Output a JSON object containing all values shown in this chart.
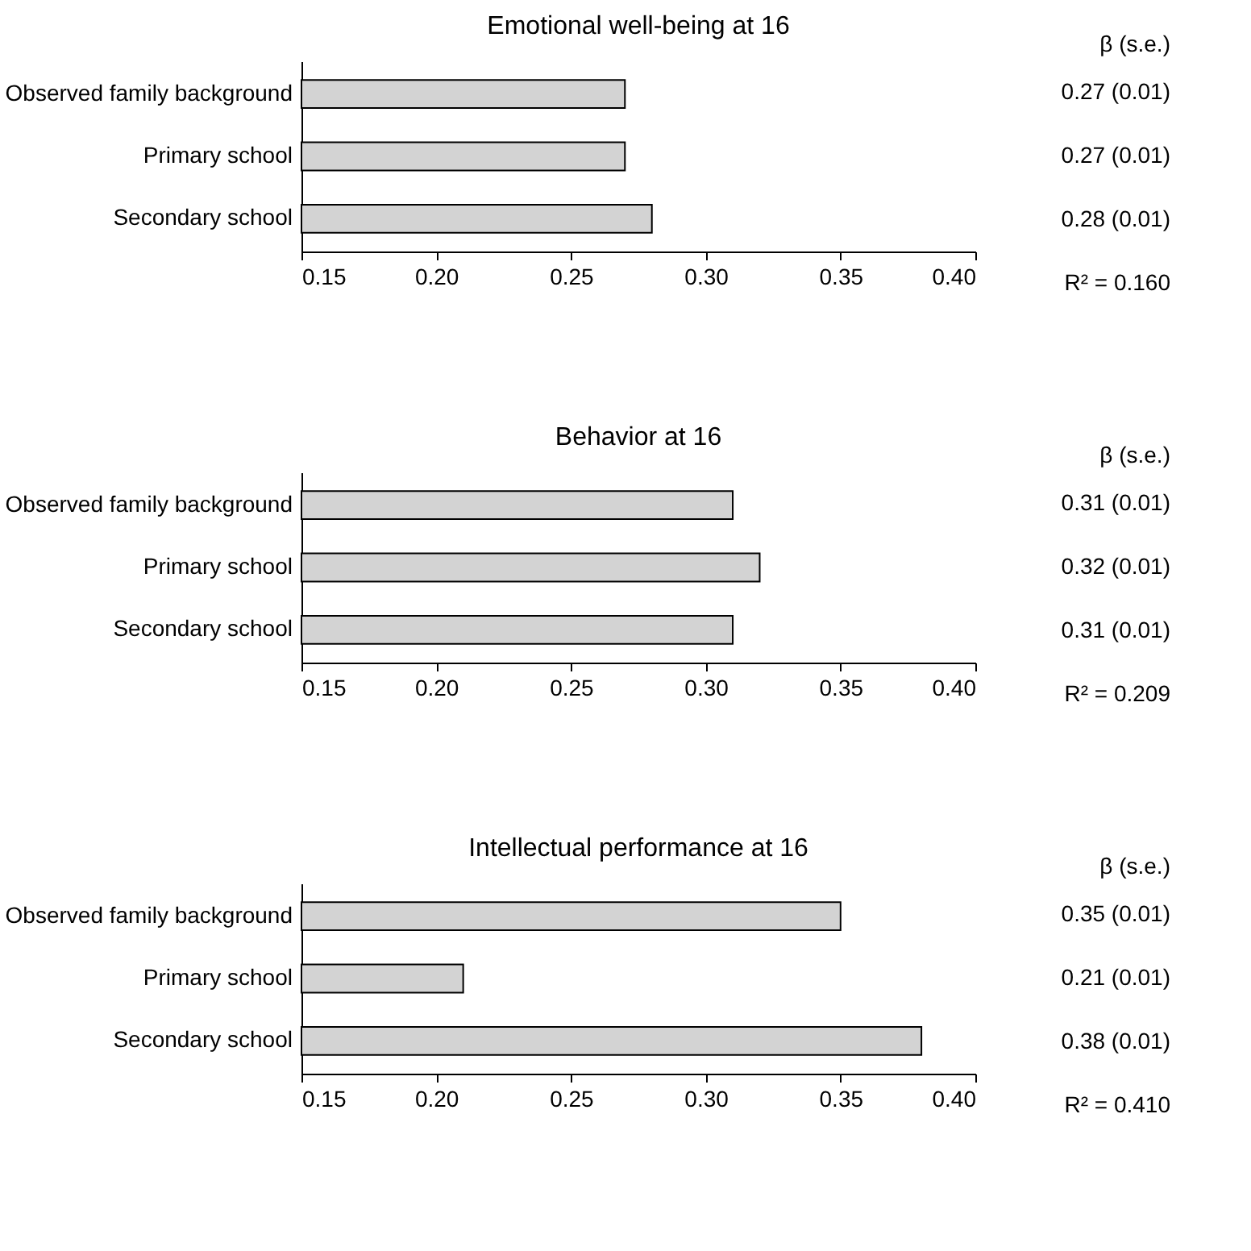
{
  "chart_data": [
    {
      "type": "bar",
      "orientation": "horizontal",
      "title": "Emotional well-being at 16",
      "categories": [
        "Observed family background",
        "Primary school",
        "Secondary school"
      ],
      "values": [
        0.27,
        0.27,
        0.28
      ],
      "color": "#d3d3d3",
      "xlim": [
        0.15,
        0.4
      ],
      "xticks": [
        0.15,
        {
          "value": 0.2,
          "label": "0.20"
        },
        0.25,
        {
          "value": 0.3,
          "label": "0.30"
        },
        0.35,
        {
          "value": 0.4,
          "label": "0.40"
        }
      ],
      "value_labels": [
        "0.27 (0.01)",
        "0.27 (0.01)",
        "0.28 (0.01)"
      ],
      "annotations": [
        "β (s.e.)",
        "R² = 0.160"
      ]
    },
    {
      "type": "bar",
      "orientation": "horizontal",
      "title": "Behavior at 16",
      "categories": [
        "Observed family background",
        "Primary school",
        "Secondary school"
      ],
      "values": [
        0.31,
        0.32,
        0.31
      ],
      "color": "#d3d3d3",
      "xlim": [
        0.15,
        0.4
      ],
      "xticks": [
        0.15,
        {
          "value": 0.2,
          "label": "0.20"
        },
        0.25,
        {
          "value": 0.3,
          "label": "0.30"
        },
        0.35,
        {
          "value": 0.4,
          "label": "0.40"
        }
      ],
      "value_labels": [
        "0.31 (0.01)",
        "0.32 (0.01)",
        "0.31 (0.01)"
      ],
      "annotations": [
        "β (s.e.)",
        "R² = 0.209"
      ]
    },
    {
      "type": "bar",
      "orientation": "horizontal",
      "title": "Intellectual performance at 16",
      "categories": [
        "Observed family background",
        "Primary school",
        "Secondary school"
      ],
      "values": [
        0.35,
        0.21,
        0.38
      ],
      "color": "#d3d3d3",
      "xlim": [
        0.15,
        0.4
      ],
      "xticks": [
        0.15,
        {
          "value": 0.2,
          "label": "0.20"
        },
        0.25,
        {
          "value": 0.3,
          "label": "0.30"
        },
        0.35,
        {
          "value": 0.4,
          "label": "0.40"
        }
      ],
      "value_labels": [
        "0.35 (0.01)",
        "0.21 (0.01)",
        "0.38 (0.01)"
      ],
      "annotations": [
        "β (s.e.)",
        "R² = 0.410"
      ]
    }
  ]
}
